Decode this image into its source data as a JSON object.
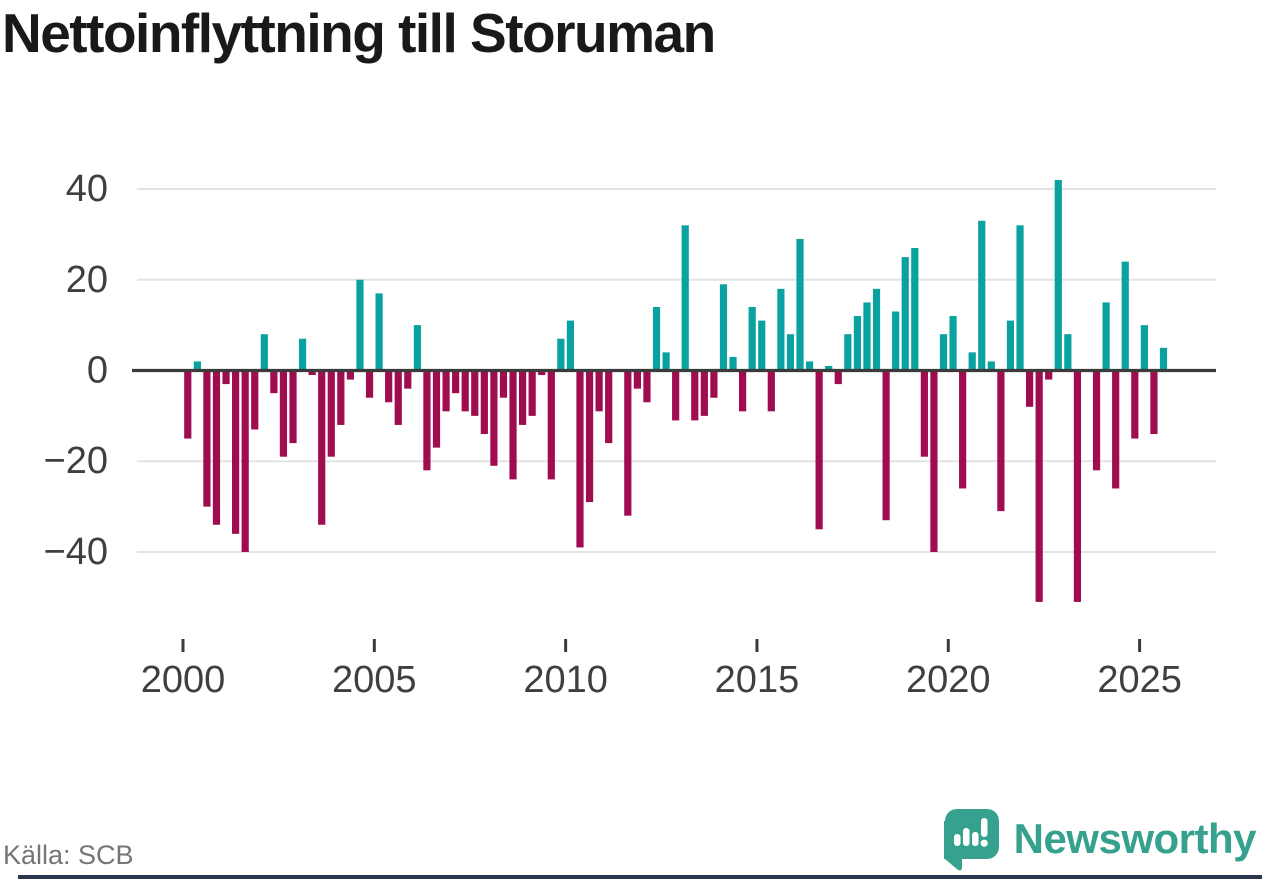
{
  "title": "Nettoinflyttning till Storuman",
  "footer": {
    "source": "Källa: SCB",
    "brand": "Newsworthy"
  },
  "chart_data": {
    "type": "bar",
    "title": "Nettoinflyttning till Storuman",
    "xlabel": "",
    "ylabel": "",
    "frequency": "quarterly",
    "ylim": [
      -52,
      44
    ],
    "yticks": [
      40,
      20,
      0,
      -20,
      -40
    ],
    "x_tick_years": [
      2000,
      2005,
      2010,
      2015,
      2020,
      2025
    ],
    "grid": true,
    "legend": false,
    "colors": {
      "positive": "#0aa2a0",
      "negative": "#a00c50",
      "gridline": "#e3e3e3",
      "zero_axis": "#3b3b3b",
      "axis_text": "#3f3f3f"
    },
    "series_by_year": [
      {
        "year": 2000,
        "values": [
          -15,
          2,
          -30,
          -34
        ]
      },
      {
        "year": 2001,
        "values": [
          -3,
          -36,
          -40,
          -13
        ]
      },
      {
        "year": 2002,
        "values": [
          8,
          -5,
          -19,
          -16
        ]
      },
      {
        "year": 2003,
        "values": [
          7,
          -1,
          -34,
          -19
        ]
      },
      {
        "year": 2004,
        "values": [
          -12,
          -2,
          20,
          -6
        ]
      },
      {
        "year": 2005,
        "values": [
          17,
          -7,
          -12,
          -4
        ]
      },
      {
        "year": 2006,
        "values": [
          10,
          -22,
          -17,
          -9
        ]
      },
      {
        "year": 2007,
        "values": [
          -5,
          -9,
          -10,
          -14
        ]
      },
      {
        "year": 2008,
        "values": [
          -21,
          -6,
          -24,
          -12
        ]
      },
      {
        "year": 2009,
        "values": [
          -10,
          -1,
          -24,
          7
        ]
      },
      {
        "year": 2010,
        "values": [
          11,
          -39,
          -29,
          -9
        ]
      },
      {
        "year": 2011,
        "values": [
          -16,
          0,
          -32,
          -4
        ]
      },
      {
        "year": 2012,
        "values": [
          -7,
          14,
          4,
          -11
        ]
      },
      {
        "year": 2013,
        "values": [
          32,
          -11,
          -10,
          -6
        ]
      },
      {
        "year": 2014,
        "values": [
          19,
          3,
          -9,
          14
        ]
      },
      {
        "year": 2015,
        "values": [
          11,
          -9,
          18,
          8
        ]
      },
      {
        "year": 2016,
        "values": [
          29,
          2,
          -35,
          1
        ]
      },
      {
        "year": 2017,
        "values": [
          -3,
          8,
          12,
          15
        ]
      },
      {
        "year": 2018,
        "values": [
          18,
          -33,
          13,
          25
        ]
      },
      {
        "year": 2019,
        "values": [
          27,
          -19,
          -40,
          8
        ]
      },
      {
        "year": 2020,
        "values": [
          12,
          -26,
          4,
          33
        ]
      },
      {
        "year": 2021,
        "values": [
          2,
          -31,
          11,
          32
        ]
      },
      {
        "year": 2022,
        "values": [
          -8,
          -51,
          -2,
          42
        ]
      },
      {
        "year": 2023,
        "values": [
          8,
          -51,
          0,
          -22
        ]
      },
      {
        "year": 2024,
        "values": [
          15,
          -26,
          24,
          -15
        ]
      },
      {
        "year": 2025,
        "values": [
          10,
          -14,
          5
        ]
      }
    ]
  }
}
